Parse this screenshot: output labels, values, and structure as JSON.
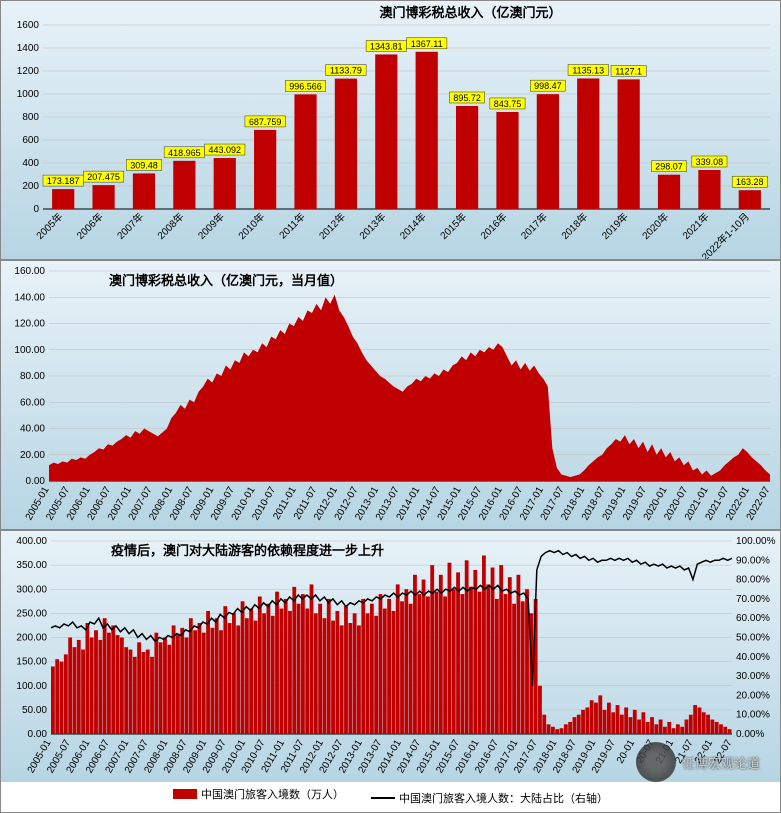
{
  "chart1": {
    "type": "bar",
    "title": "澳门博彩税总收入（亿澳门元）",
    "title_fontsize": 13,
    "bg_gradient_top": "#e8f2f8",
    "bg_gradient_bottom": "#b6d5e3",
    "bar_color": "#c00000",
    "label_bg": "#ffff00",
    "ylim": [
      0,
      1600
    ],
    "ytick_step": 200,
    "categories": [
      "2005年",
      "2006年",
      "2007年",
      "2008年",
      "2009年",
      "2010年",
      "2011年",
      "2012年",
      "2013年",
      "2014年",
      "2015年",
      "2016年",
      "2017年",
      "2018年",
      "2019年",
      "2020年",
      "2021年",
      "2022年1-10月"
    ],
    "values": [
      173.187,
      207.475,
      309.48,
      418.965,
      443.092,
      687.759,
      996.566,
      1133.79,
      1343.81,
      1367.11,
      895.72,
      843.75,
      998.47,
      1135.13,
      1127.1,
      298.07,
      339.08,
      163.28
    ],
    "axis_fontsize": 10,
    "bar_width": 0.55
  },
  "chart2": {
    "type": "area",
    "title": "澳门博彩税总收入（亿澳门元，当月值）",
    "title_fontsize": 13,
    "bg_gradient_top": "#e8f2f8",
    "bg_gradient_bottom": "#b6d5e3",
    "fill_color": "#c00000",
    "ylim": [
      0,
      160
    ],
    "ytick_step": 20,
    "y_decimals": 2,
    "x_labels": [
      "2005-01",
      "2005-07",
      "2006-01",
      "2006-07",
      "2007-01",
      "2007-07",
      "2008-01",
      "2008-07",
      "2009-01",
      "2009-07",
      "2010-01",
      "2010-07",
      "2011-01",
      "2011-07",
      "2012-01",
      "2012-07",
      "2013-01",
      "2013-07",
      "2014-01",
      "2014-07",
      "2015-01",
      "2015-07",
      "2016-01",
      "2016-07",
      "2017-01",
      "2017-07",
      "2018-01",
      "2018-07",
      "2019-01",
      "2019-07",
      "2020-01",
      "2020-07",
      "2021-01",
      "2021-07",
      "2022-01",
      "2022-07"
    ],
    "series": [
      12,
      14,
      13,
      15,
      14,
      17,
      16,
      18,
      17,
      20,
      22,
      25,
      24,
      28,
      27,
      30,
      32,
      35,
      33,
      38,
      36,
      40,
      38,
      36,
      34,
      37,
      40,
      48,
      52,
      58,
      55,
      62,
      60,
      68,
      72,
      78,
      75,
      82,
      80,
      88,
      85,
      92,
      90,
      98,
      95,
      100,
      98,
      105,
      102,
      110,
      108,
      115,
      112,
      120,
      118,
      125,
      122,
      130,
      128,
      135,
      130,
      140,
      135,
      142,
      130,
      125,
      118,
      110,
      105,
      98,
      92,
      88,
      84,
      80,
      78,
      75,
      72,
      70,
      68,
      72,
      74,
      78,
      76,
      80,
      78,
      82,
      80,
      85,
      83,
      88,
      90,
      95,
      92,
      98,
      95,
      100,
      98,
      102,
      100,
      105,
      102,
      95,
      88,
      92,
      85,
      90,
      84,
      88,
      82,
      78,
      72,
      25,
      10,
      5,
      4,
      3,
      4,
      5,
      8,
      12,
      15,
      18,
      20,
      25,
      28,
      32,
      30,
      35,
      28,
      32,
      25,
      30,
      22,
      28,
      20,
      25,
      18,
      22,
      15,
      18,
      12,
      15,
      8,
      10,
      5,
      8,
      4,
      6,
      8,
      12,
      15,
      18,
      20,
      25,
      22,
      18,
      15,
      12,
      8,
      5
    ],
    "axis_fontsize": 10
  },
  "chart3": {
    "type": "combo",
    "title": "疫情后，澳门对大陆游客的依赖程度进一步上升",
    "title_fontsize": 13,
    "bg_gradient_top": "#e8f2f8",
    "bg_gradient_bottom": "#b6d5e3",
    "bar_color": "#c00000",
    "line_color": "#000000",
    "ylim_left": [
      0,
      400
    ],
    "ytick_left_step": 50,
    "left_decimals": 2,
    "ylim_right": [
      0,
      100
    ],
    "ytick_right_step": 10,
    "right_suffix": "%",
    "x_labels": [
      "2005-01",
      "2005-07",
      "2006-01",
      "2006-07",
      "2007-01",
      "2007-07",
      "2008-01",
      "2008-07",
      "2009-01",
      "2009-07",
      "2010-01",
      "2010-07",
      "2011-01",
      "2011-07",
      "2012-01",
      "2012-07",
      "2013-01",
      "2013-07",
      "2014-01",
      "2014-07",
      "2015-01",
      "2015-07",
      "2016-01",
      "2016-07",
      "2017-01",
      "2017-07",
      "2018-01",
      "2018-07",
      "2019-01",
      "2019-07",
      "20-01",
      "20-07",
      "21-01",
      "21-07",
      "22-01",
      "22-07"
    ],
    "bars": [
      140,
      155,
      150,
      165,
      200,
      180,
      195,
      175,
      230,
      200,
      215,
      195,
      240,
      210,
      225,
      205,
      200,
      180,
      175,
      160,
      190,
      170,
      175,
      160,
      210,
      190,
      200,
      185,
      225,
      205,
      220,
      200,
      240,
      215,
      230,
      210,
      255,
      220,
      240,
      215,
      265,
      230,
      250,
      225,
      275,
      240,
      260,
      235,
      285,
      250,
      270,
      245,
      295,
      260,
      280,
      255,
      305,
      270,
      290,
      260,
      310,
      250,
      270,
      240,
      280,
      235,
      255,
      225,
      265,
      230,
      250,
      225,
      280,
      250,
      270,
      245,
      290,
      260,
      280,
      255,
      310,
      275,
      300,
      270,
      330,
      290,
      320,
      285,
      350,
      295,
      330,
      285,
      355,
      300,
      335,
      290,
      360,
      305,
      340,
      295,
      370,
      310,
      345,
      280,
      350,
      290,
      325,
      270,
      330,
      275,
      300,
      250,
      280,
      100,
      40,
      20,
      15,
      10,
      12,
      20,
      25,
      35,
      40,
      50,
      55,
      70,
      65,
      80,
      50,
      65,
      45,
      60,
      40,
      55,
      35,
      50,
      30,
      45,
      25,
      35,
      20,
      30,
      15,
      25,
      12,
      20,
      15,
      30,
      40,
      60,
      55,
      45,
      40,
      30,
      25,
      20,
      15,
      10
    ],
    "line": [
      55,
      56,
      55,
      57,
      56,
      58,
      55,
      56,
      54,
      58,
      57,
      60,
      55,
      57,
      54,
      56,
      53,
      55,
      52,
      54,
      50,
      52,
      49,
      51,
      48,
      50,
      49,
      51,
      50,
      52,
      51,
      54,
      53,
      56,
      55,
      58,
      57,
      60,
      58,
      62,
      60,
      63,
      62,
      65,
      63,
      66,
      64,
      67,
      65,
      68,
      66,
      69,
      67,
      70,
      68,
      71,
      69,
      72,
      70,
      72,
      70,
      72,
      69,
      71,
      68,
      70,
      67,
      69,
      66,
      68,
      67,
      69,
      68,
      70,
      69,
      71,
      70,
      72,
      71,
      73,
      71,
      73,
      72,
      74,
      72,
      74,
      72,
      74,
      73,
      75,
      73,
      75,
      74,
      76,
      74,
      76,
      74,
      76,
      75,
      77,
      75,
      77,
      75,
      77,
      74,
      75,
      73,
      74,
      72,
      73,
      70,
      25,
      85,
      92,
      94,
      95,
      94,
      95,
      93,
      94,
      92,
      93,
      91,
      92,
      90,
      91,
      89,
      90,
      90,
      91,
      90,
      91,
      90,
      91,
      89,
      90,
      88,
      89,
      87,
      88,
      87,
      88,
      86,
      87,
      86,
      87,
      85,
      86,
      80,
      88,
      89,
      90,
      89,
      90,
      90,
      91,
      90,
      91
    ],
    "legend": {
      "bar_label": "中国澳门旅客入境数（万人）",
      "line_label": "中国澳门旅客入境人数：大陆占比（右轴）"
    },
    "axis_fontsize": 10
  },
  "watermark_text": "任博宏观论道"
}
